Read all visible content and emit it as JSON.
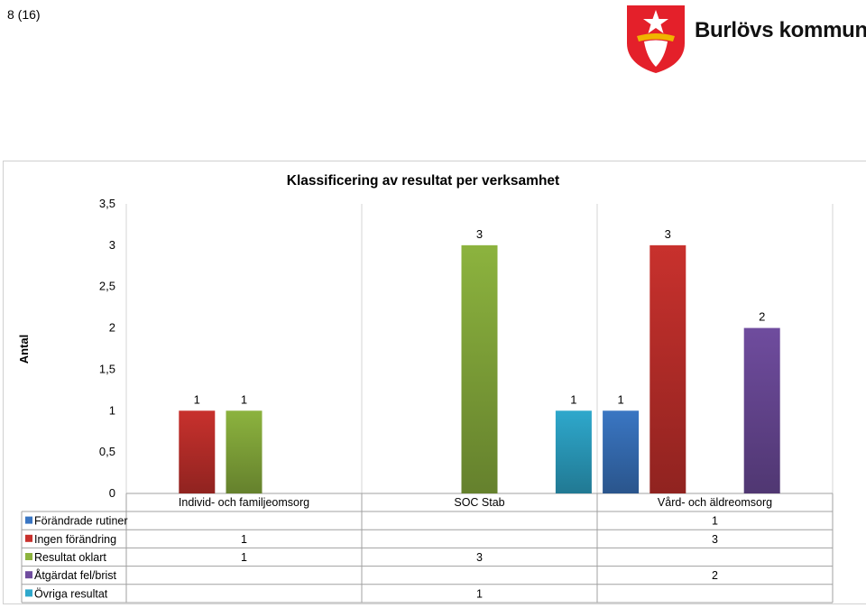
{
  "page": {
    "number": "8 (16)"
  },
  "logo": {
    "text": "Burlövs kommun",
    "colors": {
      "shield": "#e4202a",
      "emblem": "#ffffff",
      "detail": "#f0b400"
    }
  },
  "chart_data": {
    "type": "bar",
    "title": "Klassificering av resultat per verksamhet",
    "xlabel": "",
    "ylabel": "Antal",
    "ylim": [
      0,
      3.5
    ],
    "yticks": [
      "0",
      "0,5",
      "1",
      "1,5",
      "2",
      "2,5",
      "3",
      "3,5"
    ],
    "grid": false,
    "legend": "data-table-below",
    "categories": [
      "Individ- och familjeomsorg",
      "SOC Stab",
      "Vård- och äldreomsorg"
    ],
    "series": [
      {
        "name": "Förändrade rutiner",
        "color": "#3a76c3",
        "values": [
          null,
          null,
          1
        ]
      },
      {
        "name": "Ingen förändring",
        "color": "#c8312d",
        "values": [
          1,
          null,
          3
        ]
      },
      {
        "name": "Resultat oklart",
        "color": "#8cb33e",
        "values": [
          1,
          3,
          null
        ]
      },
      {
        "name": "Åtgärdat fel/brist",
        "color": "#6f4c9e",
        "values": [
          null,
          null,
          2
        ]
      },
      {
        "name": "Övriga resultat",
        "color": "#2ea8cc",
        "values": [
          null,
          1,
          null
        ]
      }
    ]
  }
}
